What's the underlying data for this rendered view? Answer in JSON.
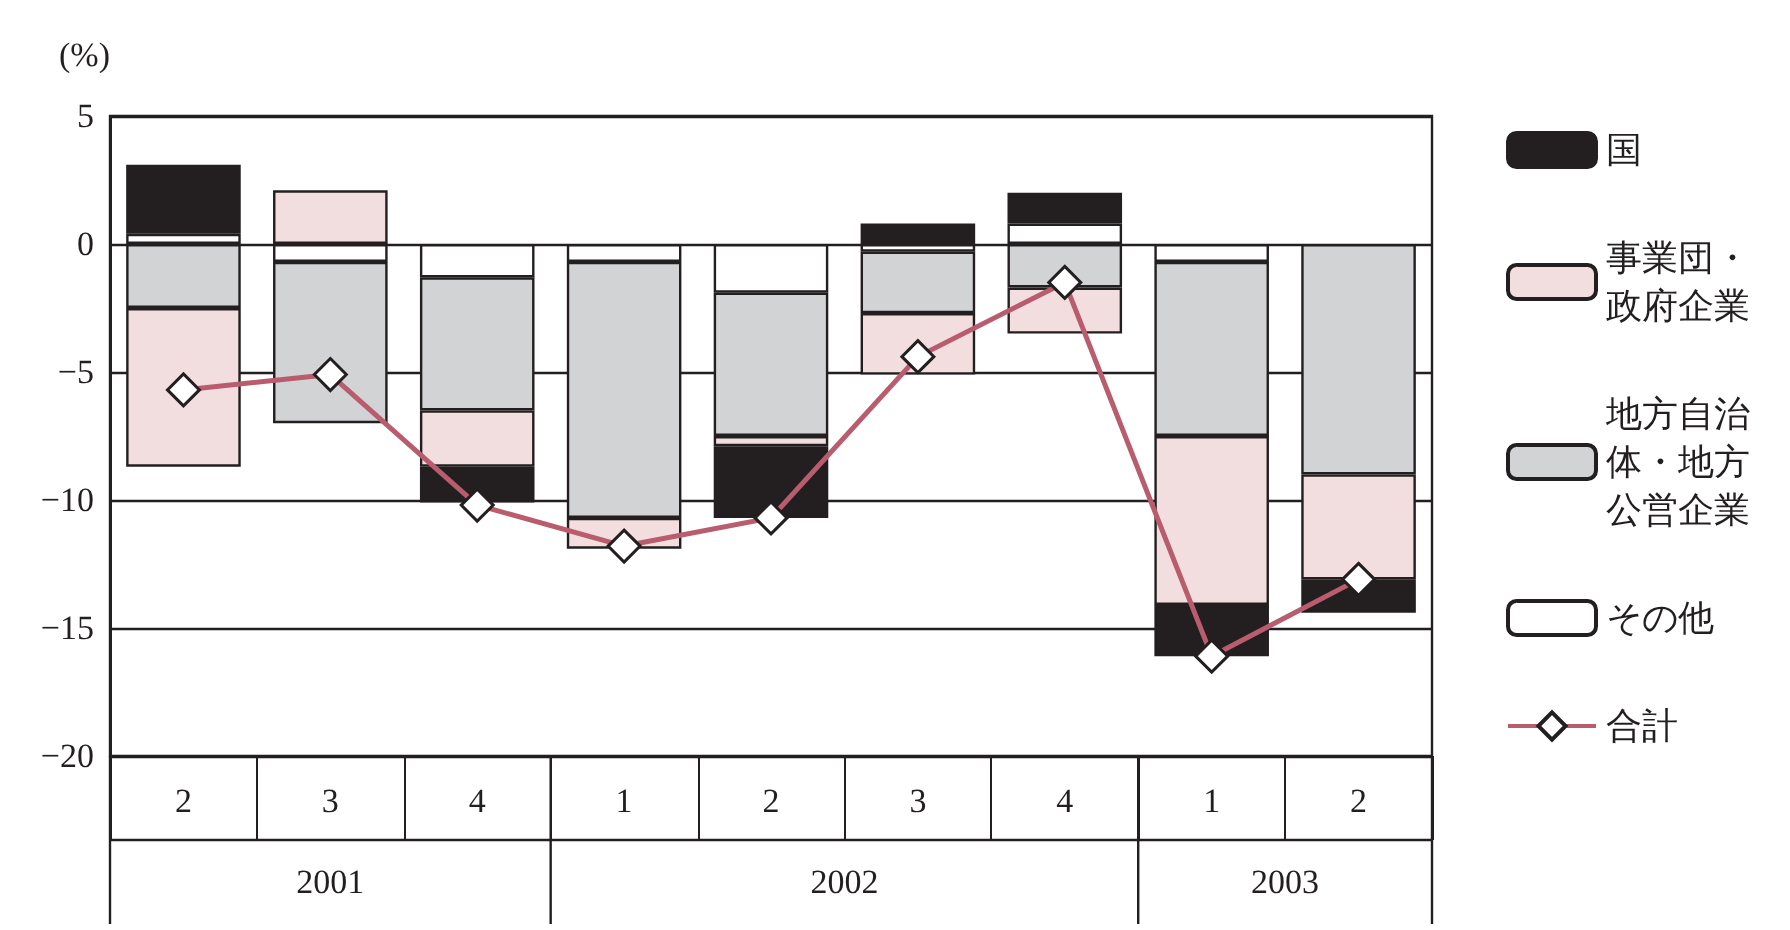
{
  "chart_data": {
    "type": "bar",
    "ylabel": "(%)",
    "categories": [
      "2",
      "3",
      "4",
      "1",
      "2",
      "3",
      "4",
      "1",
      "2"
    ],
    "annotations": [
      "2001",
      "2002",
      "2003"
    ],
    "stacked": true,
    "ylim": [
      -20,
      5
    ],
    "yticks": [
      5,
      0,
      {
        "value": -5,
        "label": "−5"
      },
      {
        "value": -10,
        "label": "−10"
      },
      {
        "value": -15,
        "label": "−15"
      },
      {
        "value": -20,
        "label": "−20"
      }
    ],
    "grid": "y",
    "legend": "right",
    "series": [
      {
        "name": "その他",
        "color": "#ffffff",
        "values": [
          0.4,
          -0.7,
          -1.3,
          -0.7,
          -1.9,
          -0.3,
          0.8,
          -0.7,
          null
        ]
      },
      {
        "name": "地方自治体・地方公営企業",
        "color": "#d1d3d4",
        "values": [
          -2.5,
          -6.3,
          -5.2,
          -10.0,
          -5.6,
          -2.4,
          -1.7,
          -6.8,
          -9.0
        ]
      },
      {
        "name": "事業団・政府企業",
        "color": "#f2dede",
        "values": [
          -6.2,
          2.1,
          -2.2,
          -1.2,
          -0.4,
          -2.4,
          -1.8,
          -6.6,
          -4.1
        ]
      },
      {
        "name": "国",
        "color": "#231f20",
        "values": [
          2.7,
          null,
          -1.4,
          null,
          -2.8,
          0.8,
          1.2,
          -2.0,
          -1.3
        ]
      },
      {
        "name": "合計",
        "type": "line",
        "color": "#b85c6e",
        "marker": "diamond",
        "values": [
          -5.7,
          -5.1,
          -10.2,
          -11.8,
          -10.7,
          -4.4,
          -1.5,
          -16.1,
          -13.1
        ]
      }
    ]
  }
}
